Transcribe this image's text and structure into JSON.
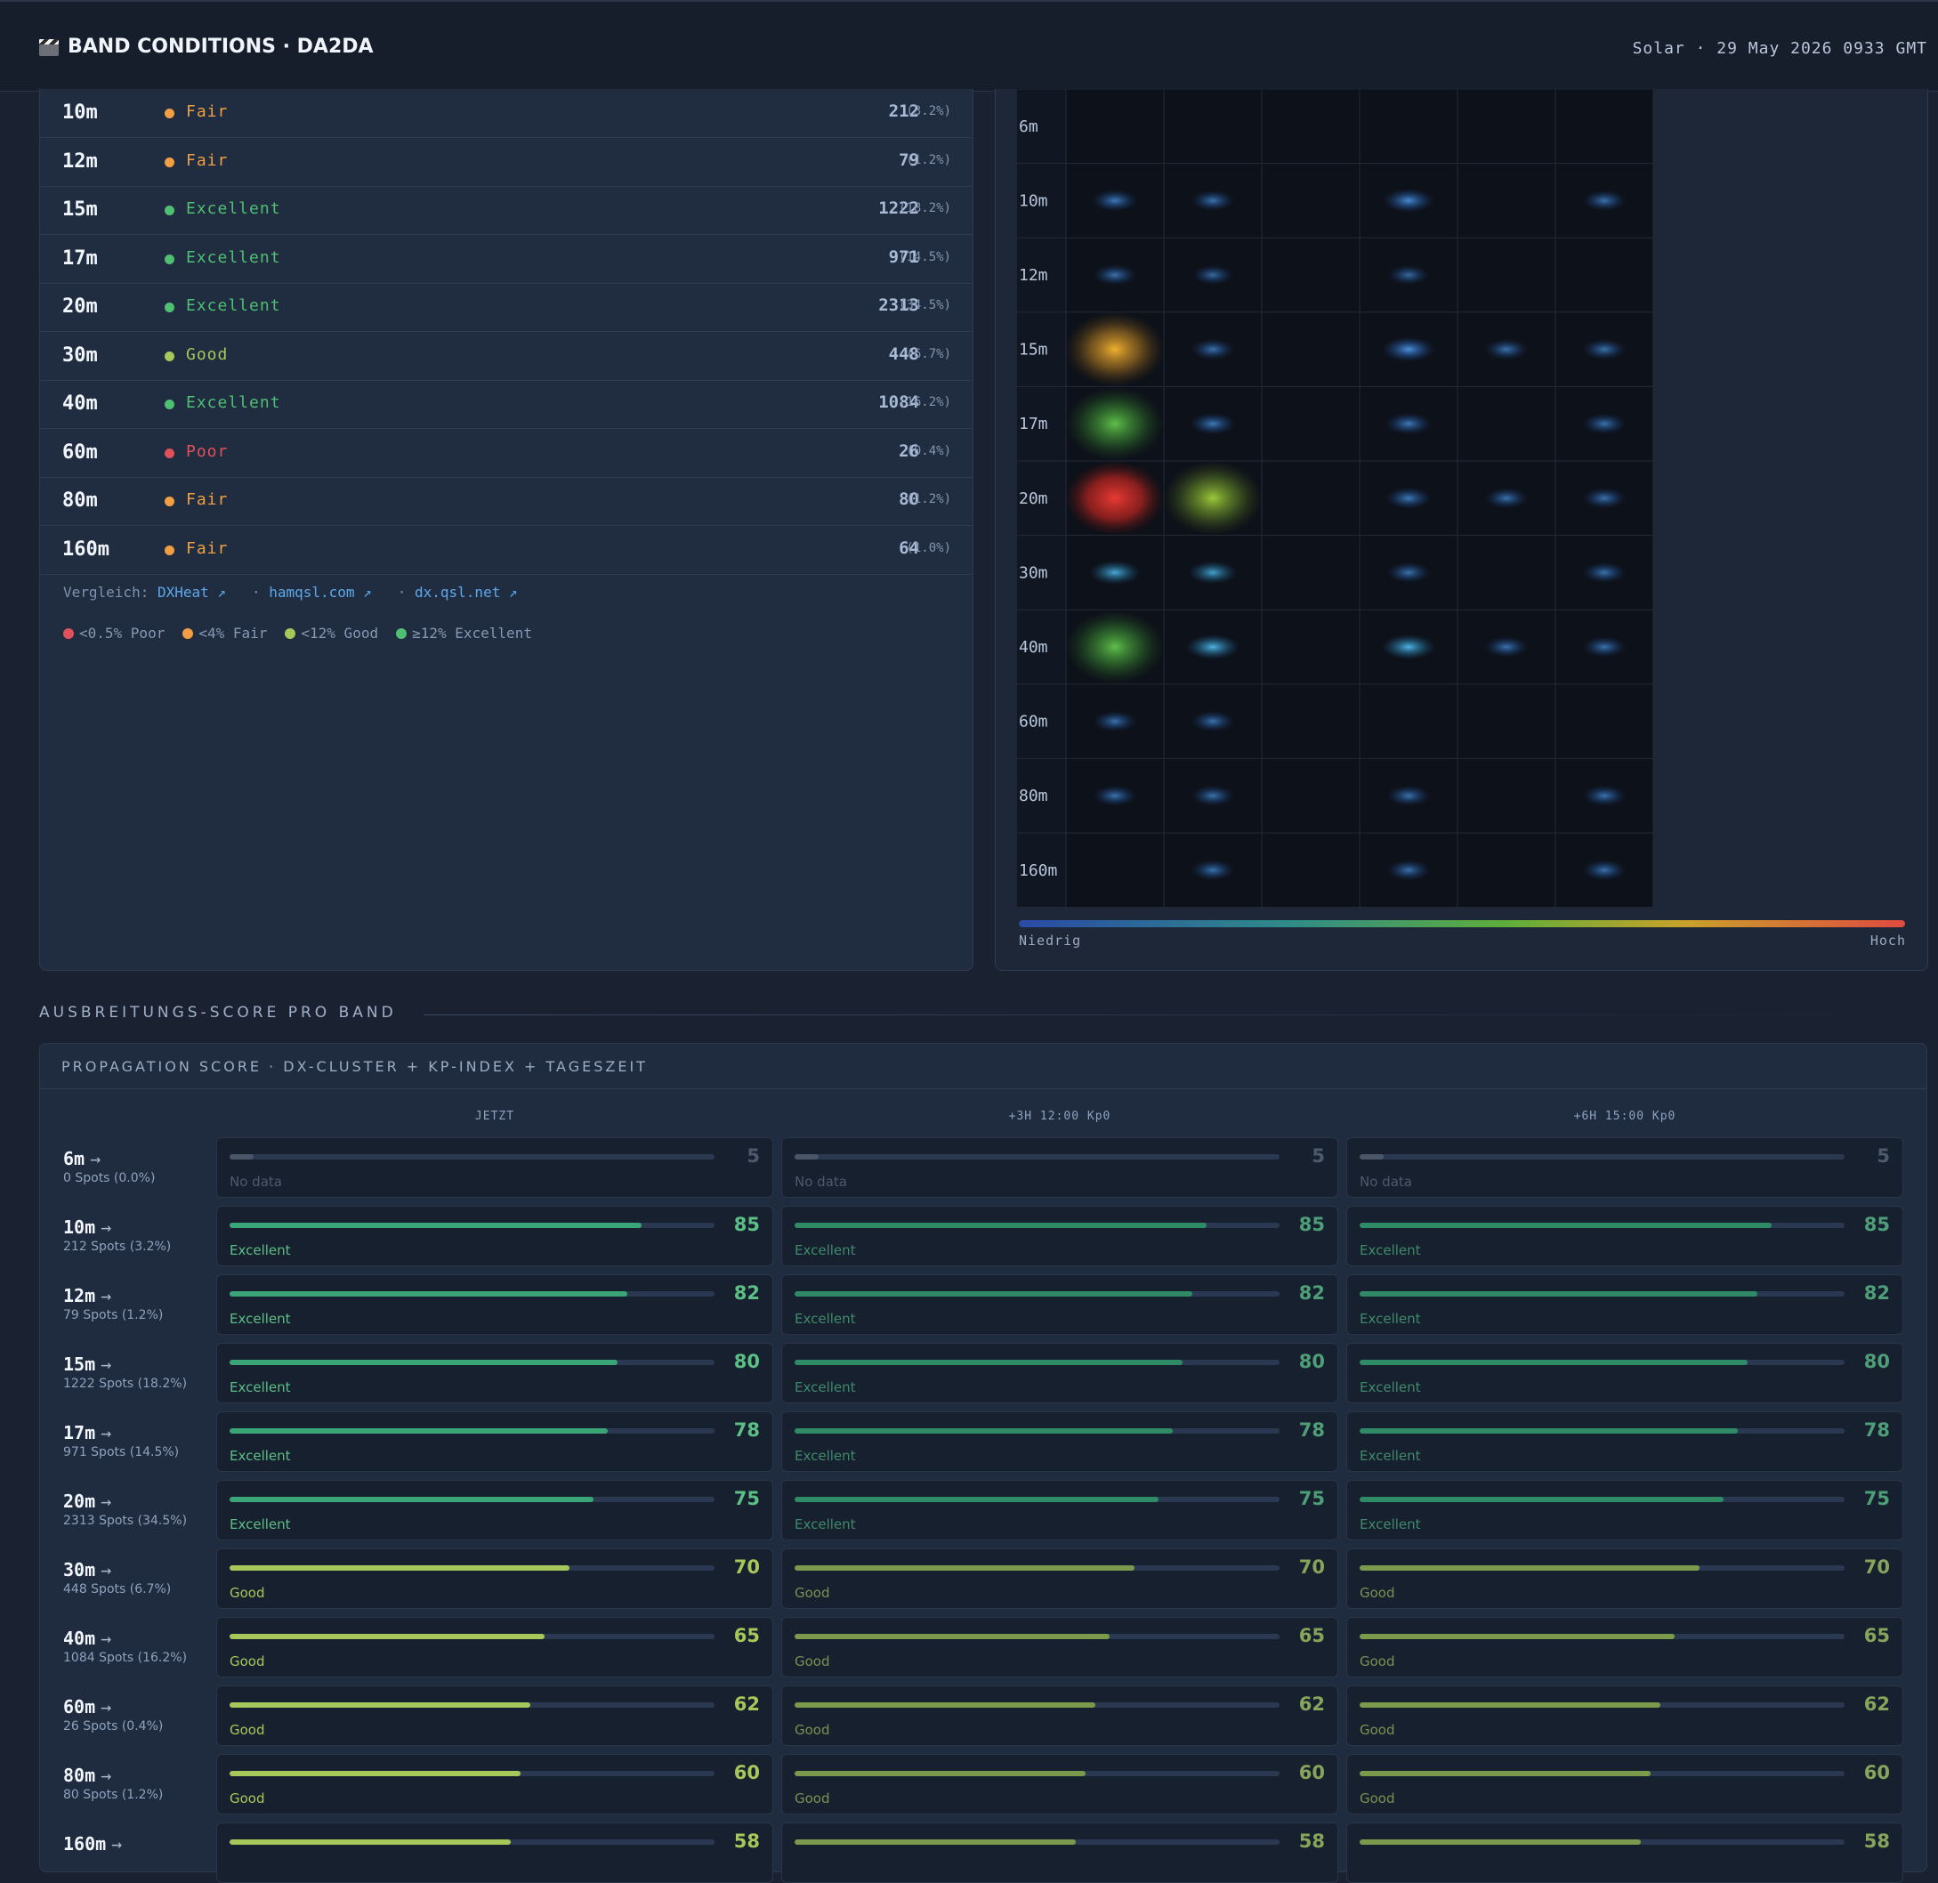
{
  "header": {
    "title": "BAND CONDITIONS · DA2DA",
    "solar": "Solar · 29 May 2026 0933 GMT"
  },
  "colors": {
    "poor": "#e0515a",
    "fair": "#f0a042",
    "good": "#a6c85a",
    "excellent": "#4fbf72",
    "link": "#5ea9ec"
  },
  "bands": [
    {
      "band": "10m",
      "condition": "Fair",
      "level": "fair",
      "spots": "212",
      "pct": "(3.2%)"
    },
    {
      "band": "12m",
      "condition": "Fair",
      "level": "fair",
      "spots": "79",
      "pct": "(1.2%)"
    },
    {
      "band": "15m",
      "condition": "Excellent",
      "level": "excellent",
      "spots": "1222",
      "pct": "(18.2%)"
    },
    {
      "band": "17m",
      "condition": "Excellent",
      "level": "excellent",
      "spots": "971",
      "pct": "(14.5%)"
    },
    {
      "band": "20m",
      "condition": "Excellent",
      "level": "excellent",
      "spots": "2313",
      "pct": "(34.5%)"
    },
    {
      "band": "30m",
      "condition": "Good",
      "level": "good",
      "spots": "448",
      "pct": "(6.7%)"
    },
    {
      "band": "40m",
      "condition": "Excellent",
      "level": "excellent",
      "spots": "1084",
      "pct": "(16.2%)"
    },
    {
      "band": "60m",
      "condition": "Poor",
      "level": "poor",
      "spots": "26",
      "pct": "(0.4%)"
    },
    {
      "band": "80m",
      "condition": "Fair",
      "level": "fair",
      "spots": "80",
      "pct": "(1.2%)"
    },
    {
      "band": "160m",
      "condition": "Fair",
      "level": "fair",
      "spots": "64",
      "pct": "(1.0%)"
    }
  ],
  "compare": {
    "label": "Vergleich:",
    "links": [
      "DXHeat ↗",
      "hamqsl.com ↗",
      "dx.qsl.net ↗"
    ],
    "sep": "·"
  },
  "legend": [
    {
      "text": "<0.5% Poor",
      "level": "poor"
    },
    {
      "text": "<4% Fair",
      "level": "fair"
    },
    {
      "text": "<12% Good",
      "level": "good"
    },
    {
      "text": "≥12% Excellent",
      "level": "excellent"
    }
  ],
  "heatmap": {
    "rows": [
      "6m",
      "10m",
      "12m",
      "15m",
      "17m",
      "20m",
      "30m",
      "40m",
      "60m",
      "80m",
      "160m"
    ],
    "low_label": "Niedrig",
    "high_label": "Hoch",
    "cells": [
      {
        "row": 1,
        "col": 0,
        "level": "blue",
        "strength": 0.6
      },
      {
        "row": 1,
        "col": 1,
        "level": "blue",
        "strength": 0.5
      },
      {
        "row": 1,
        "col": 3,
        "level": "blue",
        "strength": 0.8
      },
      {
        "row": 1,
        "col": 5,
        "level": "blue",
        "strength": 0.5
      },
      {
        "row": 2,
        "col": 0,
        "level": "blue",
        "strength": 0.5
      },
      {
        "row": 2,
        "col": 1,
        "level": "blue",
        "strength": 0.4
      },
      {
        "row": 2,
        "col": 3,
        "level": "blue",
        "strength": 0.4
      },
      {
        "row": 3,
        "col": 0,
        "level": "amber",
        "strength": 1.0
      },
      {
        "row": 3,
        "col": 1,
        "level": "blue",
        "strength": 0.5
      },
      {
        "row": 3,
        "col": 3,
        "level": "blue",
        "strength": 0.9
      },
      {
        "row": 3,
        "col": 4,
        "level": "blue",
        "strength": 0.5
      },
      {
        "row": 3,
        "col": 5,
        "level": "blue",
        "strength": 0.5
      },
      {
        "row": 4,
        "col": 0,
        "level": "green",
        "strength": 1.0
      },
      {
        "row": 4,
        "col": 1,
        "level": "blue",
        "strength": 0.6
      },
      {
        "row": 4,
        "col": 3,
        "level": "blue",
        "strength": 0.6
      },
      {
        "row": 4,
        "col": 5,
        "level": "blue",
        "strength": 0.5
      },
      {
        "row": 5,
        "col": 0,
        "level": "red",
        "strength": 1.0
      },
      {
        "row": 5,
        "col": 1,
        "level": "lime",
        "strength": 1.0
      },
      {
        "row": 5,
        "col": 3,
        "level": "blue",
        "strength": 0.6
      },
      {
        "row": 5,
        "col": 4,
        "level": "blue",
        "strength": 0.5
      },
      {
        "row": 5,
        "col": 5,
        "level": "blue",
        "strength": 0.5
      },
      {
        "row": 6,
        "col": 0,
        "level": "cyan",
        "strength": 0.8
      },
      {
        "row": 6,
        "col": 1,
        "level": "cyan",
        "strength": 0.7
      },
      {
        "row": 6,
        "col": 3,
        "level": "blue",
        "strength": 0.5
      },
      {
        "row": 6,
        "col": 5,
        "level": "blue",
        "strength": 0.5
      },
      {
        "row": 7,
        "col": 0,
        "level": "green",
        "strength": 0.9
      },
      {
        "row": 7,
        "col": 1,
        "level": "cyan",
        "strength": 0.9
      },
      {
        "row": 7,
        "col": 3,
        "level": "cyan",
        "strength": 0.9
      },
      {
        "row": 7,
        "col": 4,
        "level": "blue",
        "strength": 0.5
      },
      {
        "row": 7,
        "col": 5,
        "level": "blue",
        "strength": 0.5
      },
      {
        "row": 8,
        "col": 0,
        "level": "blue",
        "strength": 0.5
      },
      {
        "row": 8,
        "col": 1,
        "level": "blue",
        "strength": 0.5
      },
      {
        "row": 9,
        "col": 0,
        "level": "blue",
        "strength": 0.5
      },
      {
        "row": 9,
        "col": 1,
        "level": "blue",
        "strength": 0.5
      },
      {
        "row": 9,
        "col": 3,
        "level": "blue",
        "strength": 0.5
      },
      {
        "row": 9,
        "col": 5,
        "level": "blue",
        "strength": 0.5
      },
      {
        "row": 10,
        "col": 1,
        "level": "blue",
        "strength": 0.5
      },
      {
        "row": 10,
        "col": 3,
        "level": "blue",
        "strength": 0.5
      },
      {
        "row": 10,
        "col": 5,
        "level": "blue",
        "strength": 0.5
      }
    ]
  },
  "section_title": "AUSBREITUNGS-SCORE PRO BAND",
  "score": {
    "heading": "PROPAGATION SCORE · DX-CLUSTER + KP-INDEX + TAGESZEIT",
    "columns": [
      "JETZT",
      "+3H 12:00 Kp0",
      "+6H 15:00 Kp0"
    ],
    "arrow": "→",
    "rows": [
      {
        "band": "6m",
        "spots": "0 Spots (0.0%)",
        "score": 5,
        "label": "No data",
        "level": "none"
      },
      {
        "band": "10m",
        "spots": "212 Spots (3.2%)",
        "score": 85,
        "label": "Excellent",
        "level": "excellent"
      },
      {
        "band": "12m",
        "spots": "79 Spots (1.2%)",
        "score": 82,
        "label": "Excellent",
        "level": "excellent"
      },
      {
        "band": "15m",
        "spots": "1222 Spots (18.2%)",
        "score": 80,
        "label": "Excellent",
        "level": "excellent"
      },
      {
        "band": "17m",
        "spots": "971 Spots (14.5%)",
        "score": 78,
        "label": "Excellent",
        "level": "excellent"
      },
      {
        "band": "20m",
        "spots": "2313 Spots (34.5%)",
        "score": 75,
        "label": "Excellent",
        "level": "excellent"
      },
      {
        "band": "30m",
        "spots": "448 Spots (6.7%)",
        "score": 70,
        "label": "Good",
        "level": "good"
      },
      {
        "band": "40m",
        "spots": "1084 Spots (16.2%)",
        "score": 65,
        "label": "Good",
        "level": "good"
      },
      {
        "band": "60m",
        "spots": "26 Spots (0.4%)",
        "score": 62,
        "label": "Good",
        "level": "good"
      },
      {
        "band": "80m",
        "spots": "80 Spots (1.2%)",
        "score": 60,
        "label": "Good",
        "level": "good"
      },
      {
        "band": "160m",
        "spots": "",
        "score": 58,
        "label": "",
        "level": "good"
      }
    ]
  }
}
